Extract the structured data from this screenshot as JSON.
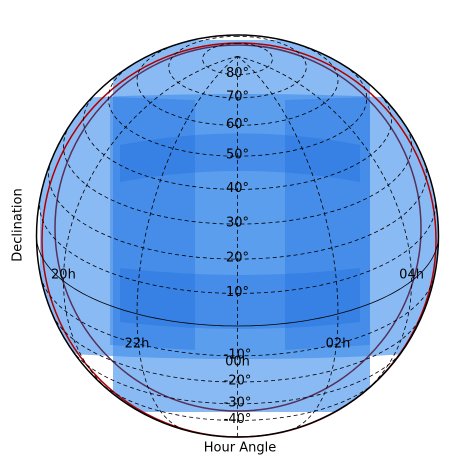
{
  "chart_data": {
    "type": "skymap",
    "xlabel": "Hour Angle",
    "ylabel": "Declination",
    "xticks": [
      {
        "value": 20,
        "label": "20h"
      },
      {
        "value": 22,
        "label": "22h"
      },
      {
        "value": 0,
        "label": "00h"
      },
      {
        "value": 2,
        "label": "02h"
      },
      {
        "value": 4,
        "label": "04h"
      }
    ],
    "yticks": [
      {
        "value": 80,
        "label": "80°"
      },
      {
        "value": 70,
        "label": "70°"
      },
      {
        "value": 60,
        "label": "60°"
      },
      {
        "value": 50,
        "label": "50°"
      },
      {
        "value": 40,
        "label": "40°"
      },
      {
        "value": 30,
        "label": "30°"
      },
      {
        "value": 20,
        "label": "20°"
      },
      {
        "value": 10,
        "label": "10°"
      },
      {
        "value": -10,
        "label": "-10°"
      },
      {
        "value": -20,
        "label": "-20°"
      },
      {
        "value": -30,
        "label": "-30°"
      },
      {
        "value": -40,
        "label": "-40°"
      }
    ],
    "grid": true
  }
}
